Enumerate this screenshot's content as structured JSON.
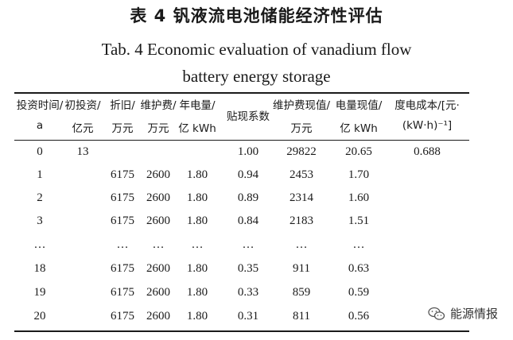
{
  "title_cn": "表 4   钒液流电池储能经济性评估",
  "title_en_line1": "Tab. 4    Economic evaluation of vanadium flow",
  "title_en_line2": "battery energy storage",
  "columns": [
    {
      "line1": "投资时间/",
      "line2": "a"
    },
    {
      "line1": "初投资/",
      "line2": "亿元"
    },
    {
      "line1": "折旧/",
      "line2": "万元"
    },
    {
      "line1": "维护费/",
      "line2": "万元"
    },
    {
      "line1": "年电量/",
      "line2": "亿 kWh"
    },
    {
      "line1": "贴现系数",
      "line2": ""
    },
    {
      "line1": "维护费现值/",
      "line2": "万元"
    },
    {
      "line1": "电量现值/",
      "line2": "亿 kWh"
    },
    {
      "line1": "度电成本/[元·",
      "line2": "(kW·h)⁻¹]"
    }
  ],
  "rows": [
    [
      "0",
      "13",
      "",
      "",
      "",
      "1.00",
      "29822",
      "20.65",
      "0.688"
    ],
    [
      "1",
      "",
      "6175",
      "2600",
      "1.80",
      "0.94",
      "2453",
      "1.70",
      ""
    ],
    [
      "2",
      "",
      "6175",
      "2600",
      "1.80",
      "0.89",
      "2314",
      "1.60",
      ""
    ],
    [
      "3",
      "",
      "6175",
      "2600",
      "1.80",
      "0.84",
      "2183",
      "1.51",
      ""
    ],
    [
      "…",
      "",
      "…",
      "…",
      "…",
      "…",
      "…",
      "…",
      ""
    ],
    [
      "18",
      "",
      "6175",
      "2600",
      "1.80",
      "0.35",
      "911",
      "0.63",
      ""
    ],
    [
      "19",
      "",
      "6175",
      "2600",
      "1.80",
      "0.33",
      "859",
      "0.59",
      ""
    ],
    [
      "20",
      "",
      "6175",
      "2600",
      "1.80",
      "0.31",
      "811",
      "0.56",
      ""
    ]
  ],
  "watermark": {
    "text": "能源情报",
    "icon": "wechat-icon"
  }
}
